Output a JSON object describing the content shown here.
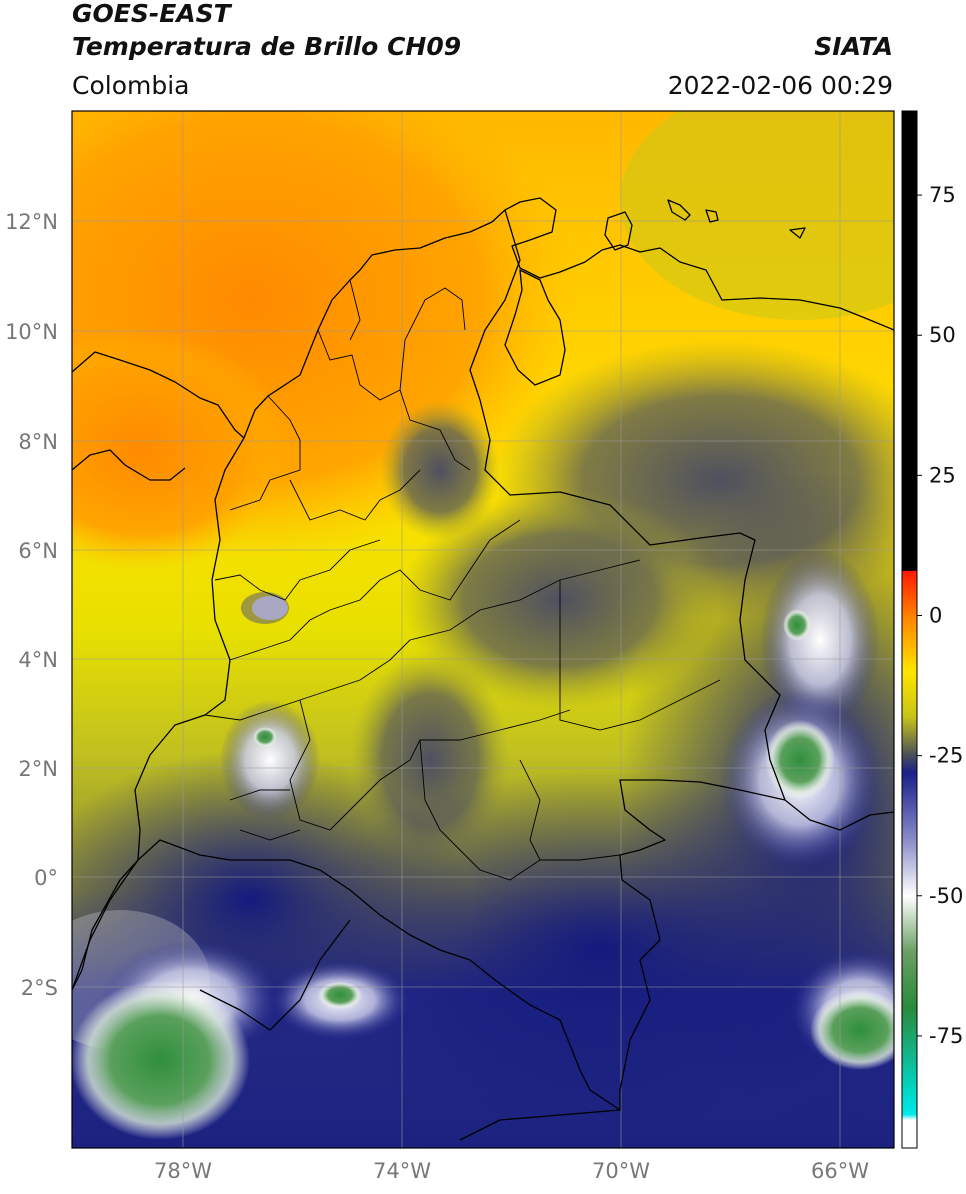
{
  "header": {
    "title_line1": "GOES-EAST",
    "title_line2": "Temperatura de Brillo CH09",
    "region": "Colombia",
    "organization": "SIATA",
    "datetime": "2022-02-06 00:29"
  },
  "map": {
    "lat_ticks": [
      "12°N",
      "10°N",
      "8°N",
      "6°N",
      "4°N",
      "2°N",
      "0°",
      "2°S"
    ],
    "lon_ticks": [
      "78°W",
      "74°W",
      "70°W",
      "66°W"
    ]
  },
  "colorbar": {
    "ticks": [
      "75",
      "50",
      "25",
      "0",
      "-25",
      "-50",
      "-75"
    ],
    "range": [
      -95,
      90
    ],
    "stops": [
      {
        "value": 90,
        "color": "#000000"
      },
      {
        "value": 8,
        "color": "#000000"
      },
      {
        "value": 7.9,
        "color": "#ff1a00"
      },
      {
        "value": 0,
        "color": "#ff8000"
      },
      {
        "value": -10,
        "color": "#ffe600"
      },
      {
        "value": -18,
        "color": "#c8c418"
      },
      {
        "value": -25,
        "color": "#4a4e5a"
      },
      {
        "value": -28,
        "color": "#1a1f8a"
      },
      {
        "value": -40,
        "color": "#8a8cc8"
      },
      {
        "value": -50,
        "color": "#ffffff"
      },
      {
        "value": -60,
        "color": "#6aa064"
      },
      {
        "value": -70,
        "color": "#2a8a3c"
      },
      {
        "value": -85,
        "color": "#00d8c8"
      },
      {
        "value": -89,
        "color": "#00eaea"
      },
      {
        "value": -90,
        "color": "#ffffff"
      },
      {
        "value": -95,
        "color": "#ffffff"
      }
    ]
  }
}
